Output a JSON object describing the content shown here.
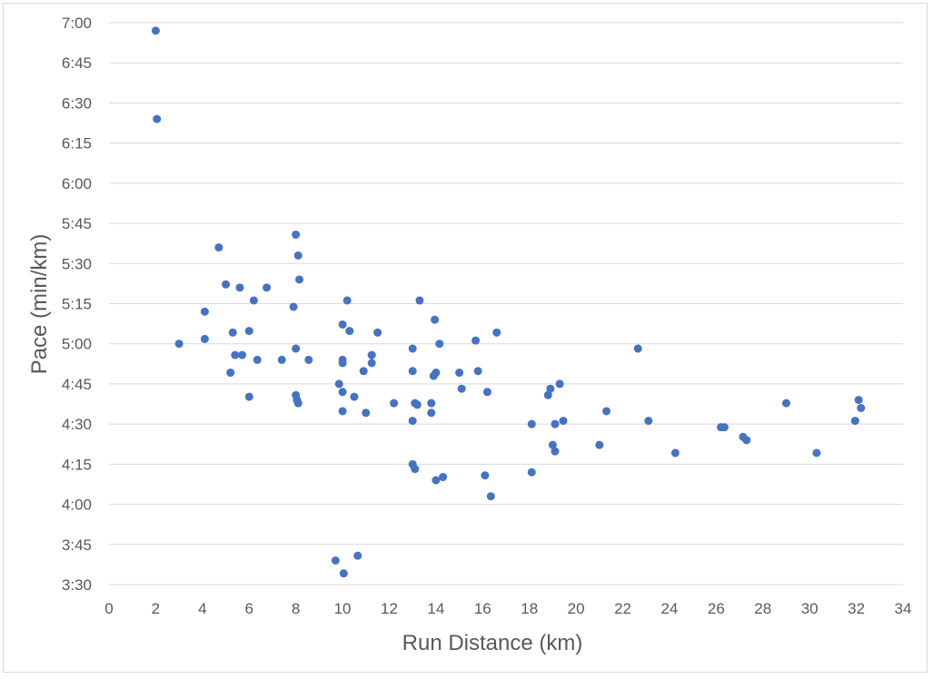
{
  "chart_data": {
    "type": "scatter",
    "title": "",
    "xlabel": "Run Distance (km)",
    "ylabel": "Pace (min/km)",
    "xlim": [
      0,
      34
    ],
    "ylim": [
      3.5,
      7.0
    ],
    "x_ticks": [
      0,
      2,
      4,
      6,
      8,
      10,
      12,
      14,
      16,
      18,
      20,
      22,
      24,
      26,
      28,
      30,
      32,
      34
    ],
    "y_ticks": [
      {
        "value": 3.5,
        "label": "3:30"
      },
      {
        "value": 3.75,
        "label": "3:45"
      },
      {
        "value": 4.0,
        "label": "4:00"
      },
      {
        "value": 4.25,
        "label": "4:15"
      },
      {
        "value": 4.5,
        "label": "4:30"
      },
      {
        "value": 4.75,
        "label": "4:45"
      },
      {
        "value": 5.0,
        "label": "5:00"
      },
      {
        "value": 5.25,
        "label": "5:15"
      },
      {
        "value": 5.5,
        "label": "5:30"
      },
      {
        "value": 5.75,
        "label": "5:45"
      },
      {
        "value": 6.0,
        "label": "6:00"
      },
      {
        "value": 6.25,
        "label": "6:15"
      },
      {
        "value": 6.5,
        "label": "6:30"
      },
      {
        "value": 6.75,
        "label": "6:45"
      },
      {
        "value": 7.0,
        "label": "7:00"
      }
    ],
    "grid": "horizontal",
    "marker_color": "#4472C4",
    "gridline_color": "#d9d9d9",
    "series": [
      {
        "points": [
          {
            "x": 2.0,
            "y": 6.95
          },
          {
            "x": 2.05,
            "y": 6.4
          },
          {
            "x": 3.0,
            "y": 5.0
          },
          {
            "x": 4.1,
            "y": 5.2
          },
          {
            "x": 4.1,
            "y": 5.03
          },
          {
            "x": 4.7,
            "y": 5.6
          },
          {
            "x": 5.0,
            "y": 5.37
          },
          {
            "x": 5.2,
            "y": 4.82
          },
          {
            "x": 5.3,
            "y": 5.07
          },
          {
            "x": 5.4,
            "y": 4.93
          },
          {
            "x": 5.6,
            "y": 5.35
          },
          {
            "x": 5.7,
            "y": 4.93
          },
          {
            "x": 6.0,
            "y": 5.08
          },
          {
            "x": 6.0,
            "y": 4.67
          },
          {
            "x": 6.2,
            "y": 5.27
          },
          {
            "x": 6.35,
            "y": 4.9
          },
          {
            "x": 6.75,
            "y": 5.35
          },
          {
            "x": 7.4,
            "y": 4.9
          },
          {
            "x": 7.9,
            "y": 5.23
          },
          {
            "x": 8.0,
            "y": 5.68
          },
          {
            "x": 8.0,
            "y": 4.97
          },
          {
            "x": 8.0,
            "y": 4.68
          },
          {
            "x": 8.05,
            "y": 4.65
          },
          {
            "x": 8.1,
            "y": 4.63
          },
          {
            "x": 8.1,
            "y": 5.55
          },
          {
            "x": 8.15,
            "y": 5.4
          },
          {
            "x": 8.55,
            "y": 4.9
          },
          {
            "x": 9.7,
            "y": 3.65
          },
          {
            "x": 9.85,
            "y": 4.75
          },
          {
            "x": 10.0,
            "y": 5.12
          },
          {
            "x": 10.0,
            "y": 4.9
          },
          {
            "x": 10.0,
            "y": 4.88
          },
          {
            "x": 10.0,
            "y": 4.7
          },
          {
            "x": 10.0,
            "y": 4.58
          },
          {
            "x": 10.05,
            "y": 3.57
          },
          {
            "x": 10.2,
            "y": 5.27
          },
          {
            "x": 10.3,
            "y": 5.08
          },
          {
            "x": 10.5,
            "y": 4.67
          },
          {
            "x": 10.65,
            "y": 3.68
          },
          {
            "x": 10.9,
            "y": 4.83
          },
          {
            "x": 11.0,
            "y": 4.57
          },
          {
            "x": 11.25,
            "y": 4.93
          },
          {
            "x": 11.25,
            "y": 4.88
          },
          {
            "x": 11.5,
            "y": 5.07
          },
          {
            "x": 12.2,
            "y": 4.63
          },
          {
            "x": 13.0,
            "y": 4.97
          },
          {
            "x": 13.0,
            "y": 4.83
          },
          {
            "x": 13.0,
            "y": 4.52
          },
          {
            "x": 13.0,
            "y": 4.25
          },
          {
            "x": 13.1,
            "y": 4.22
          },
          {
            "x": 13.1,
            "y": 4.63
          },
          {
            "x": 13.2,
            "y": 4.62
          },
          {
            "x": 13.3,
            "y": 5.27
          },
          {
            "x": 13.8,
            "y": 4.63
          },
          {
            "x": 13.8,
            "y": 4.57
          },
          {
            "x": 13.9,
            "y": 4.8
          },
          {
            "x": 13.95,
            "y": 5.15
          },
          {
            "x": 14.0,
            "y": 4.82
          },
          {
            "x": 14.0,
            "y": 4.15
          },
          {
            "x": 14.15,
            "y": 5.0
          },
          {
            "x": 14.3,
            "y": 4.17
          },
          {
            "x": 15.0,
            "y": 4.82
          },
          {
            "x": 15.1,
            "y": 4.72
          },
          {
            "x": 15.7,
            "y": 5.02
          },
          {
            "x": 15.8,
            "y": 4.83
          },
          {
            "x": 16.1,
            "y": 4.18
          },
          {
            "x": 16.2,
            "y": 4.7
          },
          {
            "x": 16.35,
            "y": 4.05
          },
          {
            "x": 16.6,
            "y": 5.07
          },
          {
            "x": 18.1,
            "y": 4.5
          },
          {
            "x": 18.1,
            "y": 4.2
          },
          {
            "x": 18.8,
            "y": 4.68
          },
          {
            "x": 18.9,
            "y": 4.72
          },
          {
            "x": 19.0,
            "y": 4.37
          },
          {
            "x": 19.1,
            "y": 4.5
          },
          {
            "x": 19.1,
            "y": 4.33
          },
          {
            "x": 19.3,
            "y": 4.75
          },
          {
            "x": 19.45,
            "y": 4.52
          },
          {
            "x": 21.0,
            "y": 4.37
          },
          {
            "x": 21.3,
            "y": 4.58
          },
          {
            "x": 22.65,
            "y": 4.97
          },
          {
            "x": 23.1,
            "y": 4.52
          },
          {
            "x": 24.25,
            "y": 4.32
          },
          {
            "x": 26.2,
            "y": 4.48
          },
          {
            "x": 26.35,
            "y": 4.48
          },
          {
            "x": 27.15,
            "y": 4.42
          },
          {
            "x": 27.3,
            "y": 4.4
          },
          {
            "x": 29.0,
            "y": 4.63
          },
          {
            "x": 30.3,
            "y": 4.32
          },
          {
            "x": 31.95,
            "y": 4.52
          },
          {
            "x": 32.1,
            "y": 4.65
          },
          {
            "x": 32.2,
            "y": 4.6
          }
        ]
      }
    ]
  }
}
